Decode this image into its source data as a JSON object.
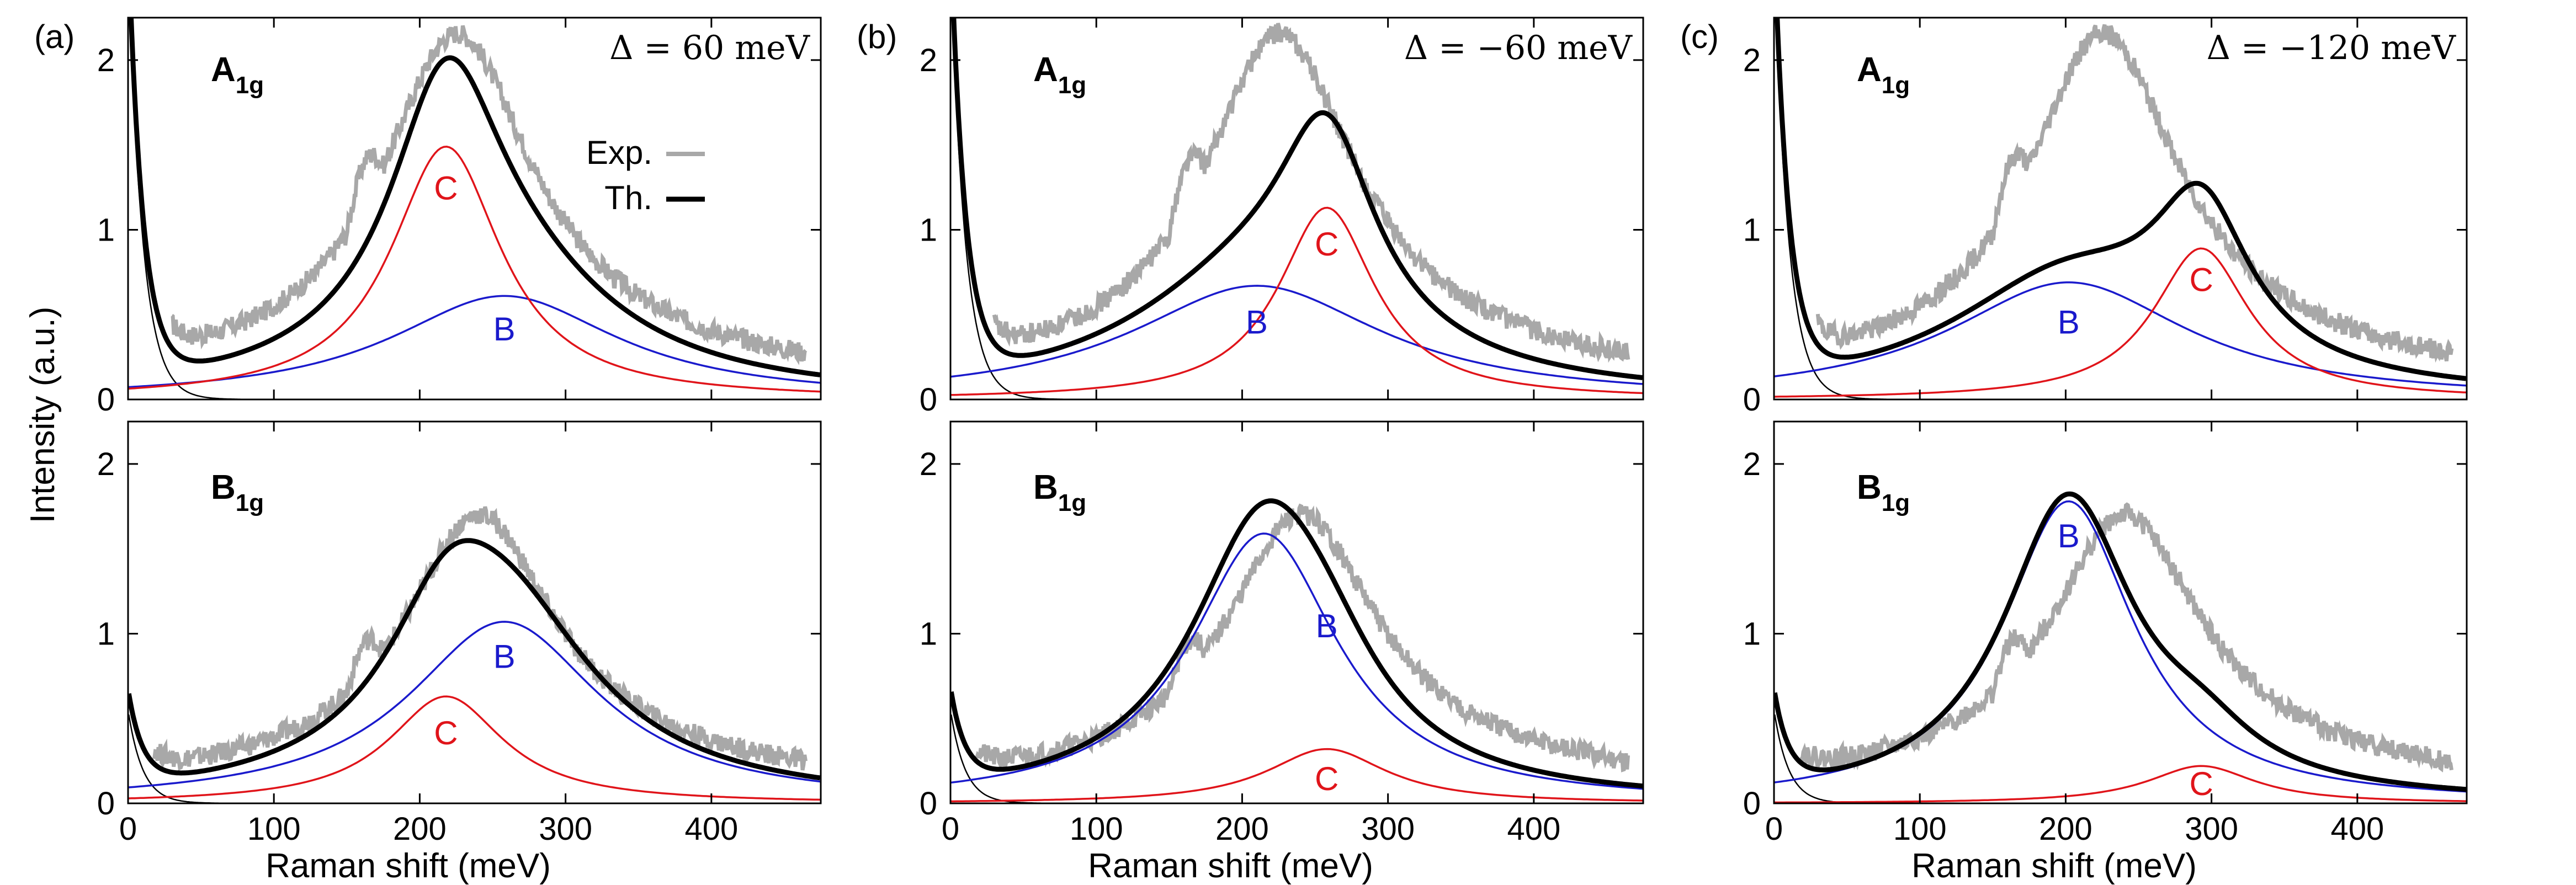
{
  "figure": {
    "ylabel": "Intensity (a.u.)",
    "xlabel": "Raman shift (meV)",
    "legend": {
      "exp": "Exp.",
      "th": "Th."
    },
    "colors": {
      "exp": "#a8a8a8",
      "th": "#000000",
      "B": "#1a1acc",
      "C": "#e0141a",
      "tail": "#000000"
    }
  },
  "chart_data": [
    {
      "panel": "(a)",
      "row": "A_1g",
      "type": "line",
      "mode_label": "A",
      "mode_sub": "1g",
      "annotation": "Δ = 60 meV",
      "xlim": [
        0,
        475
      ],
      "ylim": [
        0,
        2.25
      ],
      "xticks": [
        0,
        100,
        200,
        300,
        400
      ],
      "yticks": [
        0,
        1,
        2
      ],
      "series": [
        {
          "name": "C",
          "center": 218,
          "width": 46,
          "amplitude": 1.49,
          "label_at": [
            218,
            1.25
          ]
        },
        {
          "name": "B",
          "center": 258,
          "width": 95,
          "amplitude": 0.61,
          "label_at": [
            258,
            0.42
          ]
        },
        {
          "name": "Th.",
          "sum_of": [
            "C",
            "B"
          ],
          "peak": [
            218,
            2.03
          ],
          "tail_amplitude": 2.6,
          "tail_decay": 10
        },
        {
          "name": "Exp.",
          "peak": [
            225,
            2.05
          ],
          "noise": 0.06
        }
      ]
    },
    {
      "panel": "(b)",
      "row": "A_1g",
      "type": "line",
      "mode_label": "A",
      "mode_sub": "1g",
      "annotation": "Δ = −60 meV",
      "xlim": [
        0,
        475
      ],
      "ylim": [
        0,
        2.25
      ],
      "xticks": [
        0,
        100,
        200,
        300,
        400
      ],
      "yticks": [
        0,
        1,
        2
      ],
      "series": [
        {
          "name": "C",
          "center": 258,
          "width": 40,
          "amplitude": 1.13,
          "label_at": [
            258,
            0.92
          ]
        },
        {
          "name": "B",
          "center": 210,
          "width": 105,
          "amplitude": 0.67,
          "label_at": [
            210,
            0.46
          ]
        },
        {
          "name": "Th.",
          "sum_of": [
            "C",
            "B"
          ],
          "peak": [
            255,
            1.7
          ],
          "tail_amplitude": 2.6,
          "tail_decay": 10
        },
        {
          "name": "Exp.",
          "peak": [
            225,
            2.05
          ],
          "noise": 0.06
        }
      ]
    },
    {
      "panel": "(c)",
      "row": "A_1g",
      "type": "line",
      "mode_label": "A",
      "mode_sub": "1g",
      "annotation": "Δ = −120 meV",
      "xlim": [
        0,
        475
      ],
      "ylim": [
        0,
        2.25
      ],
      "xticks": [
        0,
        100,
        200,
        300,
        400
      ],
      "yticks": [
        0,
        1,
        2
      ],
      "series": [
        {
          "name": "C",
          "center": 293,
          "width": 40,
          "amplitude": 0.89,
          "label_at": [
            293,
            0.71
          ]
        },
        {
          "name": "B",
          "center": 202,
          "width": 100,
          "amplitude": 0.69,
          "label_at": [
            202,
            0.46
          ]
        },
        {
          "name": "Th.",
          "sum_of": [
            "C",
            "B"
          ],
          "peak": [
            293,
            1.26
          ],
          "tail_amplitude": 2.6,
          "tail_decay": 10
        },
        {
          "name": "Exp.",
          "peak": [
            225,
            2.05
          ],
          "noise": 0.06
        }
      ]
    },
    {
      "panel": "(a)",
      "row": "B_1g",
      "type": "line",
      "mode_label": "B",
      "mode_sub": "1g",
      "xlim": [
        0,
        475
      ],
      "ylim": [
        0,
        2.25
      ],
      "xticks": [
        0,
        100,
        200,
        300,
        400
      ],
      "yticks": [
        0,
        1,
        2
      ],
      "series": [
        {
          "name": "C",
          "center": 218,
          "width": 48,
          "amplitude": 0.63,
          "label_at": [
            218,
            0.42
          ]
        },
        {
          "name": "B",
          "center": 258,
          "width": 80,
          "amplitude": 1.07,
          "label_at": [
            258,
            0.87
          ]
        },
        {
          "name": "Th.",
          "sum_of": [
            "C",
            "B"
          ],
          "peak": [
            245,
            1.57
          ],
          "tail_amplitude": 0.55,
          "tail_decay": 10
        },
        {
          "name": "Exp.",
          "peak": [
            240,
            1.6
          ],
          "noise": 0.06
        }
      ]
    },
    {
      "panel": "(b)",
      "row": "B_1g",
      "type": "line",
      "mode_label": "B",
      "mode_sub": "1g",
      "xlim": [
        0,
        475
      ],
      "ylim": [
        0,
        2.25
      ],
      "xticks": [
        0,
        100,
        200,
        300,
        400
      ],
      "yticks": [
        0,
        1,
        2
      ],
      "series": [
        {
          "name": "C",
          "center": 258,
          "width": 50,
          "amplitude": 0.32,
          "label_at": [
            258,
            0.15
          ]
        },
        {
          "name": "B",
          "center": 215,
          "width": 62,
          "amplitude": 1.59,
          "label_at": [
            258,
            1.05
          ]
        },
        {
          "name": "Th.",
          "sum_of": [
            "C",
            "B"
          ],
          "peak": [
            220,
            1.81
          ],
          "tail_amplitude": 0.55,
          "tail_decay": 10
        },
        {
          "name": "Exp.",
          "peak": [
            240,
            1.6
          ],
          "noise": 0.06
        }
      ]
    },
    {
      "panel": "(c)",
      "row": "B_1g",
      "type": "line",
      "mode_label": "B",
      "mode_sub": "1g",
      "xlim": [
        0,
        475
      ],
      "ylim": [
        0,
        2.25
      ],
      "xticks": [
        0,
        100,
        200,
        300,
        400
      ],
      "yticks": [
        0,
        1,
        2
      ],
      "series": [
        {
          "name": "C",
          "center": 293,
          "width": 45,
          "amplitude": 0.22,
          "label_at": [
            293,
            0.12
          ]
        },
        {
          "name": "B",
          "center": 202,
          "width": 55,
          "amplitude": 1.78,
          "label_at": [
            202,
            1.58
          ]
        },
        {
          "name": "Th.",
          "sum_of": [
            "C",
            "B"
          ],
          "peak": [
            205,
            1.86
          ],
          "tail_amplitude": 0.55,
          "tail_decay": 10
        },
        {
          "name": "Exp.",
          "peak": [
            240,
            1.6
          ],
          "noise": 0.06
        }
      ]
    }
  ]
}
